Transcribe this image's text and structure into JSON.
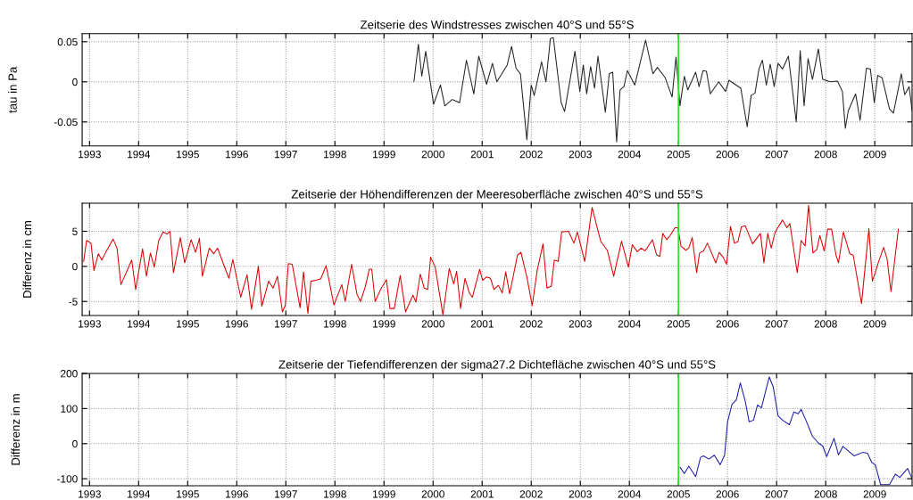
{
  "chart_data": [
    {
      "type": "line",
      "title": "Zeitserie des Windstresses zwischen 40°S und 55°S",
      "ylabel": "tau in Pa",
      "xlim": [
        1992.85,
        2009.76
      ],
      "xticks": [
        1993,
        1994,
        1995,
        1996,
        1997,
        1998,
        1999,
        2000,
        2001,
        2002,
        2003,
        2004,
        2005,
        2006,
        2007,
        2008,
        2009
      ],
      "ylim": [
        -0.08,
        0.06
      ],
      "yticks": [
        -0.05,
        0,
        0.05
      ],
      "grid": true,
      "legend": false,
      "line_style": "solid",
      "marker": "none",
      "ref_lines": [
        {
          "axis": "x",
          "value": 2005,
          "color": "#33dd33"
        }
      ],
      "series": [
        {
          "color": "#222222",
          "x": [
            1999.61,
            1999.7,
            1999.77,
            1999.85,
            2000.01,
            2000.15,
            2000.24,
            2000.39,
            2000.54,
            2000.68,
            2000.83,
            2000.93,
            2001.09,
            2001.21,
            2001.3,
            2001.51,
            2001.6,
            2001.69,
            2001.78,
            2001.91,
            2002.0,
            2002.06,
            2002.21,
            2002.3,
            2002.39,
            2002.45,
            2002.61,
            2002.68,
            2002.89,
            2002.99,
            2003.06,
            2003.13,
            2003.21,
            2003.29,
            2003.36,
            2003.51,
            2003.59,
            2003.66,
            2003.74,
            2003.81,
            2003.89,
            2003.96,
            2004.11,
            2004.33,
            2004.48,
            2004.57,
            2004.73,
            2004.87,
            2004.95,
            2005.03,
            2005.12,
            2005.19,
            2005.35,
            2005.42,
            2005.5,
            2005.57,
            2005.65,
            2005.82,
            2005.96,
            2006.03,
            2006.27,
            2006.4,
            2006.48,
            2006.56,
            2006.64,
            2006.71,
            2006.79,
            2006.87,
            2006.95,
            2007.03,
            2007.12,
            2007.24,
            2007.4,
            2007.48,
            2007.56,
            2007.64,
            2007.73,
            2007.85,
            2007.94,
            2008.09,
            2008.24,
            2008.34,
            2008.4,
            2008.46,
            2008.61,
            2008.7,
            2008.83,
            2008.91,
            2008.99,
            2009.06,
            2009.15,
            2009.3,
            2009.38,
            2009.54,
            2009.61,
            2009.7,
            2009.76
          ],
          "values": [
            0.0,
            0.047,
            0.007,
            0.038,
            -0.028,
            -0.004,
            -0.03,
            -0.022,
            -0.026,
            0.027,
            -0.015,
            0.032,
            -0.003,
            0.023,
            0.0,
            0.021,
            0.044,
            0.017,
            0.01,
            -0.072,
            -0.004,
            -0.017,
            0.025,
            0.0,
            0.054,
            0.055,
            -0.026,
            -0.037,
            0.038,
            -0.012,
            0.021,
            -0.015,
            0.019,
            -0.008,
            0.032,
            -0.038,
            0.01,
            0.012,
            -0.075,
            -0.01,
            -0.006,
            0.014,
            -0.004,
            0.052,
            0.01,
            0.018,
            0.005,
            -0.019,
            0.031,
            -0.03,
            0.007,
            -0.01,
            0.012,
            -0.006,
            0.014,
            0.013,
            -0.015,
            0.0,
            -0.012,
            0.002,
            -0.008,
            -0.056,
            -0.017,
            -0.014,
            0.016,
            0.027,
            -0.004,
            0.022,
            -0.006,
            0.023,
            0.016,
            0.032,
            -0.05,
            0.039,
            -0.03,
            0.029,
            0.003,
            0.041,
            0.003,
            0.0,
            0.001,
            -0.012,
            -0.058,
            -0.036,
            -0.015,
            -0.048,
            0.017,
            0.016,
            -0.026,
            0.008,
            0.005,
            -0.034,
            -0.039,
            0.01,
            -0.016,
            -0.006,
            -0.036
          ]
        }
      ]
    },
    {
      "type": "line",
      "title": "Zeitserie der Höhendifferenzen der Meeresoberfläche zwischen 40°S und 55°S",
      "ylabel": "Differenz in cm",
      "xlim": [
        1992.85,
        2009.76
      ],
      "xticks": [
        1993,
        1994,
        1995,
        1996,
        1997,
        1998,
        1999,
        2000,
        2001,
        2002,
        2003,
        2004,
        2005,
        2006,
        2007,
        2008,
        2009
      ],
      "ylim": [
        -7,
        9
      ],
      "yticks": [
        -5,
        0,
        5
      ],
      "grid": true,
      "legend": false,
      "line_style": "solid",
      "marker": "none",
      "ref_lines": [
        {
          "axis": "x",
          "value": 2005,
          "color": "#33dd33"
        }
      ],
      "series": [
        {
          "color": "#dd0000",
          "x": [
            1992.88,
            1992.94,
            1993.03,
            1993.09,
            1993.18,
            1993.25,
            1993.33,
            1993.48,
            1993.56,
            1993.64,
            1993.86,
            1993.94,
            1994.08,
            1994.16,
            1994.24,
            1994.32,
            1994.41,
            1994.5,
            1994.58,
            1994.64,
            1994.71,
            1994.85,
            1994.94,
            1995.07,
            1995.16,
            1995.24,
            1995.3,
            1995.44,
            1995.53,
            1995.61,
            1995.73,
            1995.84,
            1995.92,
            1996.08,
            1996.21,
            1996.3,
            1996.44,
            1996.51,
            1996.65,
            1996.74,
            1996.83,
            1996.93,
            1996.99,
            1997.05,
            1997.13,
            1997.29,
            1997.36,
            1997.45,
            1997.51,
            1997.6,
            1997.71,
            1997.82,
            1997.98,
            1998.14,
            1998.21,
            1998.34,
            1998.45,
            1998.52,
            1998.62,
            1998.7,
            1998.75,
            1998.82,
            1998.93,
            1999.05,
            1999.12,
            1999.21,
            1999.33,
            1999.44,
            1999.59,
            1999.65,
            1999.74,
            1999.82,
            1999.89,
            1999.95,
            2000.04,
            2000.2,
            2000.33,
            2000.42,
            2000.48,
            2000.56,
            2000.65,
            2000.74,
            2000.8,
            2000.95,
            2001.01,
            2001.09,
            2001.17,
            2001.24,
            2001.33,
            2001.41,
            2001.48,
            2001.56,
            2001.72,
            2001.79,
            2001.91,
            2002.02,
            2002.12,
            2002.24,
            2002.32,
            2002.41,
            2002.47,
            2002.55,
            2002.62,
            2002.76,
            2002.87,
            2002.94,
            2003.09,
            2003.24,
            2003.33,
            2003.42,
            2003.55,
            2003.68,
            2003.84,
            2003.98,
            2004.06,
            2004.16,
            2004.24,
            2004.32,
            2004.47,
            2004.55,
            2004.62,
            2004.68,
            2004.76,
            2004.83,
            2004.93,
            2004.99,
            2005.05,
            2005.15,
            2005.21,
            2005.28,
            2005.37,
            2005.43,
            2005.51,
            2005.59,
            2005.76,
            2005.83,
            2005.91,
            2005.98,
            2006.06,
            2006.14,
            2006.21,
            2006.28,
            2006.36,
            2006.51,
            2006.67,
            2006.74,
            2006.82,
            2006.89,
            2006.97,
            2007.12,
            2007.21,
            2007.27,
            2007.42,
            2007.5,
            2007.58,
            2007.65,
            2007.74,
            2007.82,
            2007.88,
            2007.97,
            2008.04,
            2008.12,
            2008.21,
            2008.26,
            2008.36,
            2008.49,
            2008.56,
            2008.73,
            2008.88,
            2008.95,
            2009.01,
            2009.07,
            2009.18,
            2009.25,
            2009.33,
            2009.48
          ],
          "values": [
            0.7,
            3.7,
            3.3,
            -0.6,
            1.8,
            0.9,
            2.0,
            3.9,
            2.6,
            -2.6,
            0.9,
            -3.3,
            2.5,
            -1.4,
            1.9,
            -0.1,
            3.7,
            4.9,
            4.6,
            5.0,
            -0.9,
            4.1,
            0.5,
            3.8,
            2.0,
            4.0,
            -1.4,
            2.6,
            1.8,
            2.6,
            0.3,
            -1.7,
            1.0,
            -4.4,
            -1.2,
            -6.1,
            0.0,
            -5.7,
            -2.1,
            -3.1,
            -1.4,
            -6.5,
            -5.5,
            0.4,
            0.3,
            -5.9,
            -0.8,
            -6.7,
            -2.1,
            -2.0,
            -1.8,
            0.1,
            -5.5,
            -2.6,
            -5.0,
            0.3,
            -4.0,
            -5.0,
            -2.9,
            -0.4,
            -0.4,
            -5.0,
            -3.3,
            -1.9,
            -6.0,
            -6.0,
            -1.3,
            -6.5,
            -4.1,
            -5.1,
            -1.1,
            -3.1,
            -3.3,
            1.3,
            0.0,
            -6.9,
            -0.3,
            -2.5,
            -0.7,
            -6.0,
            -1.7,
            -3.8,
            -4.4,
            -0.4,
            -2.0,
            -1.5,
            -1.7,
            -3.3,
            -2.7,
            -3.8,
            -0.8,
            -3.9,
            1.6,
            2.0,
            -1.5,
            -5.6,
            -0.6,
            3.2,
            -3.1,
            -2.8,
            0.9,
            0.7,
            4.9,
            5.0,
            3.3,
            4.9,
            0.7,
            8.4,
            5.9,
            3.5,
            2.3,
            -1.4,
            3.6,
            -0.1,
            3.1,
            2.1,
            2.6,
            2.2,
            3.8,
            1.7,
            1.4,
            4.7,
            3.8,
            4.4,
            5.5,
            5.5,
            2.9,
            2.3,
            2.6,
            4.1,
            -0.9,
            1.9,
            2.2,
            3.3,
            0.5,
            2.0,
            1.3,
            0.3,
            5.7,
            3.3,
            3.5,
            5.6,
            5.8,
            3.2,
            4.7,
            0.5,
            4.7,
            2.6,
            4.9,
            6.6,
            5.5,
            6.1,
            -0.9,
            3.7,
            2.9,
            8.7,
            1.9,
            2.4,
            4.4,
            2.2,
            5.3,
            5.3,
            1.6,
            0.5,
            4.9,
            1.8,
            1.6,
            -5.3,
            5.4,
            -2.1,
            -0.9,
            0.5,
            2.7,
            1.1,
            -3.6,
            5.3
          ]
        }
      ]
    },
    {
      "type": "line",
      "title": "Zeitserie der Tiefendifferenzen der sigma27.2 Dichtefläche zwischen 40°S und 55°S",
      "ylabel": "Differenz in m",
      "xlim": [
        1992.85,
        2009.76
      ],
      "xticks": [
        1993,
        1994,
        1995,
        1996,
        1997,
        1998,
        1999,
        2000,
        2001,
        2002,
        2003,
        2004,
        2005,
        2006,
        2007,
        2008,
        2009
      ],
      "ylim": [
        -120,
        200
      ],
      "yticks": [
        -100,
        0,
        100,
        200
      ],
      "grid": true,
      "legend": false,
      "line_style": "solid",
      "marker": "none",
      "ref_lines": [
        {
          "axis": "x",
          "value": 2005,
          "color": "#33dd33"
        }
      ],
      "series": [
        {
          "color": "#1a1aaa",
          "x": [
            2005.03,
            2005.12,
            2005.21,
            2005.35,
            2005.45,
            2005.51,
            2005.62,
            2005.73,
            2005.85,
            2005.94,
            2006.0,
            2006.09,
            2006.18,
            2006.26,
            2006.36,
            2006.44,
            2006.53,
            2006.61,
            2006.69,
            2006.85,
            2006.93,
            2007.03,
            2007.12,
            2007.26,
            2007.35,
            2007.44,
            2007.5,
            2007.61,
            2007.73,
            2007.85,
            2007.94,
            2008.02,
            2008.17,
            2008.26,
            2008.35,
            2008.58,
            2008.75,
            2008.85,
            2008.94,
            2009.01,
            2009.12,
            2009.3,
            2009.42,
            2009.51,
            2009.67,
            2009.76
          ],
          "values": [
            -67,
            -85,
            -64,
            -94,
            -39,
            -35,
            -44,
            -33,
            -60,
            -33,
            62,
            112,
            125,
            173,
            121,
            62,
            67,
            110,
            102,
            190,
            162,
            79,
            67,
            54,
            90,
            85,
            98,
            62,
            21,
            2,
            -7,
            -37,
            15,
            -32,
            -8,
            -35,
            -25,
            -27,
            -54,
            -60,
            -117,
            -117,
            -87,
            -96,
            -71,
            -100
          ]
        }
      ]
    }
  ]
}
